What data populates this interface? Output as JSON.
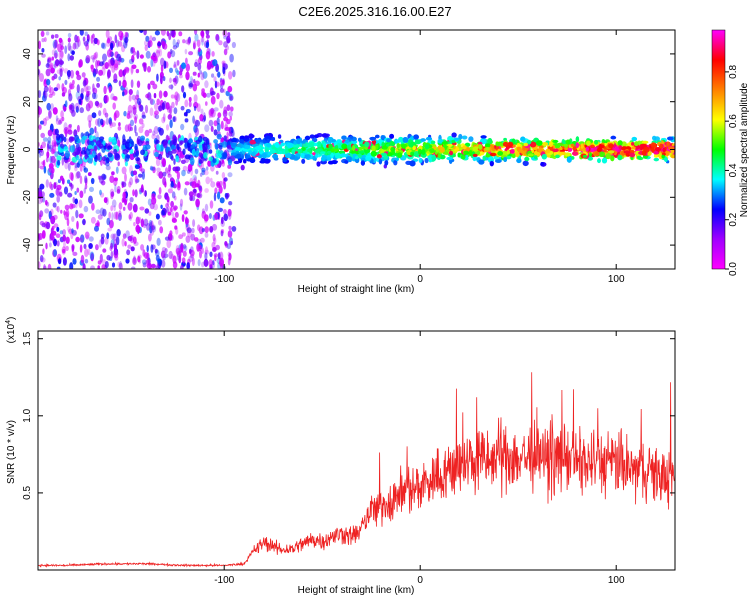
{
  "chart_data": [
    {
      "type": "heatmap",
      "title": "C2E6.2025.316.16.00.E27",
      "xlabel": "Height of straight line (km)",
      "ylabel": "Frequency (Hz)",
      "xlim": [
        -195,
        130
      ],
      "ylim": [
        -50,
        50
      ],
      "xticks": [
        -100,
        0,
        100
      ],
      "xtick_labels": [
        "-100",
        "0",
        "100"
      ],
      "yticks": [
        -40,
        -20,
        0,
        20,
        40
      ],
      "ytick_labels": [
        "-40",
        "-20",
        "0",
        "20",
        "40"
      ],
      "colorbar": {
        "label": "Normalized spectral amplitude",
        "range": [
          0,
          0.97
        ],
        "ticks": [
          0,
          0.2,
          0.4,
          0.6,
          0.8
        ],
        "tick_labels": [
          "0.0",
          "0.2",
          "0.4",
          "0.6",
          "0.8"
        ],
        "colors": [
          "#ff00ff",
          "#a000ff",
          "#0000ff",
          "#00ffff",
          "#00ff00",
          "#ffff00",
          "#ff8000",
          "#ff0000",
          "#ff00ff"
        ]
      },
      "regions": [
        {
          "x_range": [
            -195,
            -95
          ],
          "freq_spread": [
            -50,
            50
          ],
          "amplitude_max": 0.25,
          "description": "noise"
        },
        {
          "x_range": [
            -95,
            130
          ],
          "freq_center": 0,
          "freq_halfwidth": 5,
          "amplitude_max": 0.95,
          "description": "signal band"
        }
      ]
    },
    {
      "type": "line",
      "xlabel": "Height of straight line (km)",
      "ylabel": "SNR (10 * v/v)",
      "y_scale_label": "(x10",
      "y_scale_exp": "4",
      "xlim": [
        -195,
        130
      ],
      "ylim": [
        0,
        1.55
      ],
      "xticks": [
        -100,
        0,
        100
      ],
      "xtick_labels": [
        "-100",
        "0",
        "100"
      ],
      "yticks": [
        0.5,
        1.0,
        1.5
      ],
      "ytick_labels": [
        "0.5",
        "1.0",
        "1.5"
      ],
      "series": [
        {
          "name": "SNR",
          "color": "#ee2222",
          "x": [
            -195,
            -180,
            -160,
            -140,
            -120,
            -100,
            -90,
            -85,
            -80,
            -75,
            -70,
            -65,
            -60,
            -55,
            -50,
            -45,
            -40,
            -35,
            -30,
            -27,
            -25,
            -22,
            -20,
            -15,
            -10,
            -5,
            0,
            5,
            10,
            15,
            20,
            25,
            30,
            35,
            40,
            45,
            50,
            55,
            60,
            65,
            70,
            75,
            80,
            85,
            90,
            95,
            100,
            105,
            110,
            115,
            120,
            125,
            130
          ],
          "y": [
            0.03,
            0.03,
            0.04,
            0.04,
            0.03,
            0.03,
            0.04,
            0.12,
            0.18,
            0.15,
            0.13,
            0.14,
            0.17,
            0.2,
            0.19,
            0.21,
            0.24,
            0.22,
            0.26,
            0.35,
            0.4,
            0.38,
            0.42,
            0.45,
            0.5,
            0.52,
            0.55,
            0.58,
            0.62,
            0.65,
            0.67,
            0.7,
            0.72,
            0.7,
            0.73,
            0.75,
            0.72,
            0.74,
            0.73,
            0.71,
            0.72,
            0.74,
            0.7,
            0.69,
            0.71,
            0.68,
            0.7,
            0.66,
            0.64,
            0.66,
            0.62,
            0.6,
            0.62
          ]
        }
      ]
    }
  ]
}
